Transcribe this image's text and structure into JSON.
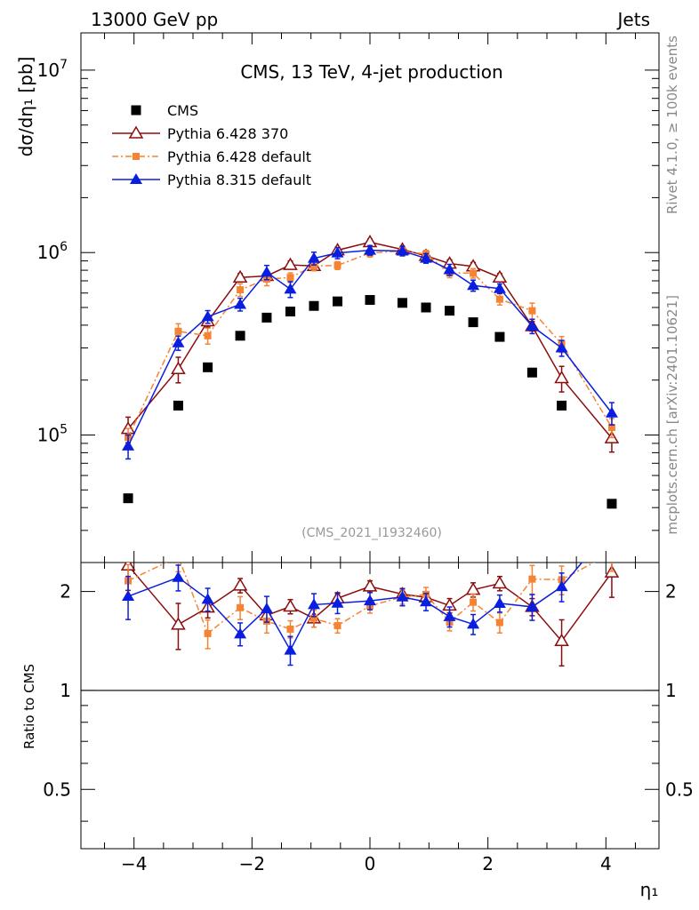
{
  "header": {
    "left": "13000 GeV pp",
    "right": "Jets"
  },
  "side_notes": {
    "rivet": "Rivet 4.1.0, ≥ 100k events",
    "mcplots": "mcplots.cern.ch [arXiv:2401.10621]"
  },
  "chart_data": {
    "type": "scatter",
    "title": "CMS, 13 TeV, 4-jet production",
    "analysis_tag": "(CMS_2021_I1932460)",
    "ylabel_main": "dσ/dη₁ [pb]",
    "ylabel_ratio": "Ratio to CMS",
    "xlabel": "η₁",
    "xlim": [
      -4.9,
      4.9
    ],
    "ylim": [
      20000,
      16000000
    ],
    "ratio_ylim": [
      0.33,
      2.45
    ],
    "x_ticks": [
      "−4",
      "−2",
      "0",
      "2",
      "4"
    ],
    "y_ticks": [
      "10^5",
      "10^6",
      "10^7"
    ],
    "ratio_ticks": [
      "0.5",
      "1",
      "2"
    ],
    "x": [
      -4.1,
      -3.25,
      -2.75,
      -2.2,
      -1.75,
      -1.35,
      -0.95,
      -0.55,
      0.0,
      0.55,
      0.95,
      1.35,
      1.75,
      2.2,
      2.75,
      3.25,
      4.1
    ],
    "series": [
      {
        "name": "CMS",
        "color": "#000000",
        "marker": "square",
        "line": "none",
        "values": [
          45000,
          145000,
          235000,
          350000,
          440000,
          475000,
          510000,
          540000,
          550000,
          530000,
          500000,
          480000,
          415000,
          345000,
          220000,
          145000,
          42000
        ],
        "err_rel": []
      },
      {
        "name": "Pythia 6.428 370",
        "color": "#8b0d0d",
        "marker": "triangle-open",
        "line": "solid",
        "values": [
          108000,
          230000,
          420000,
          730000,
          745000,
          855000,
          845000,
          1030000,
          1140000,
          1040000,
          960000,
          870000,
          840000,
          730000,
          395000,
          205000,
          96000
        ],
        "err_rel": [
          0.16,
          0.16,
          0.07,
          0.05,
          0.05,
          0.05,
          0.06,
          0.04,
          0.04,
          0.04,
          0.04,
          0.05,
          0.05,
          0.05,
          0.06,
          0.16,
          0.16
        ]
      },
      {
        "name": "Pythia 6.428 default",
        "color": "#f58334",
        "marker": "square",
        "line": "dashdot",
        "values": [
          97000,
          370000,
          350000,
          625000,
          715000,
          730000,
          845000,
          850000,
          995000,
          1020000,
          980000,
          775000,
          770000,
          555000,
          480000,
          315000,
          110000
        ],
        "err_rel": [
          0.12,
          0.1,
          0.1,
          0.08,
          0.08,
          0.06,
          0.06,
          0.05,
          0.05,
          0.05,
          0.05,
          0.06,
          0.06,
          0.07,
          0.1,
          0.1,
          0.12
        ]
      },
      {
        "name": "Pythia 8.315 default",
        "color": "#0a1ee0",
        "marker": "triangle",
        "line": "solid",
        "values": [
          87000,
          320000,
          445000,
          520000,
          780000,
          630000,
          930000,
          995000,
          1030000,
          1020000,
          930000,
          805000,
          660000,
          635000,
          395000,
          300000,
          132000
        ],
        "err_rel": [
          0.15,
          0.09,
          0.08,
          0.08,
          0.09,
          0.1,
          0.08,
          0.07,
          0.06,
          0.06,
          0.06,
          0.07,
          0.07,
          0.06,
          0.09,
          0.1,
          0.14
        ]
      }
    ]
  }
}
